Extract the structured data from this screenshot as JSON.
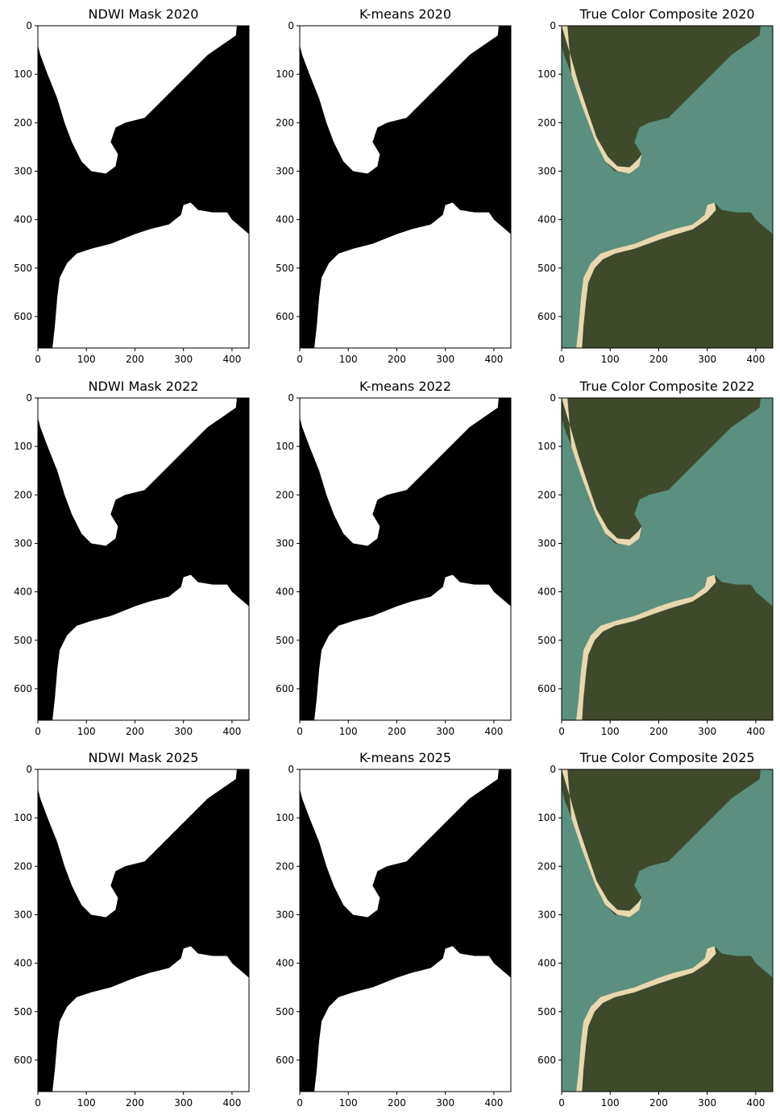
{
  "figure": {
    "rows": [
      {
        "year": "2020",
        "panels": [
          {
            "kind": "mask",
            "title": "NDWI Mask 2020"
          },
          {
            "kind": "mask",
            "title": "K-means 2020"
          },
          {
            "kind": "rgb",
            "title": "True Color Composite 2020"
          }
        ]
      },
      {
        "year": "2022",
        "panels": [
          {
            "kind": "mask",
            "title": "NDWI Mask 2022"
          },
          {
            "kind": "mask",
            "title": "K-means 2022"
          },
          {
            "kind": "rgb",
            "title": "True Color Composite 2022"
          }
        ]
      },
      {
        "year": "2025",
        "panels": [
          {
            "kind": "mask",
            "title": "NDWI Mask 2025"
          },
          {
            "kind": "mask",
            "title": "K-means 2025"
          },
          {
            "kind": "rgb",
            "title": "True Color Composite 2025"
          }
        ]
      }
    ],
    "axes": {
      "x_range": [
        0,
        435
      ],
      "y_range": [
        0,
        665
      ],
      "y_inverted": true,
      "x_ticks": [
        "0",
        "100",
        "200",
        "300",
        "400"
      ],
      "y_ticks": [
        "0",
        "100",
        "200",
        "300",
        "400",
        "500",
        "600"
      ]
    },
    "colors": {
      "land": "#ffffff",
      "water": "#000000",
      "sea": "#5b8f80",
      "forest": "#3f4a2c",
      "sand": "#e8d8b0"
    }
  }
}
